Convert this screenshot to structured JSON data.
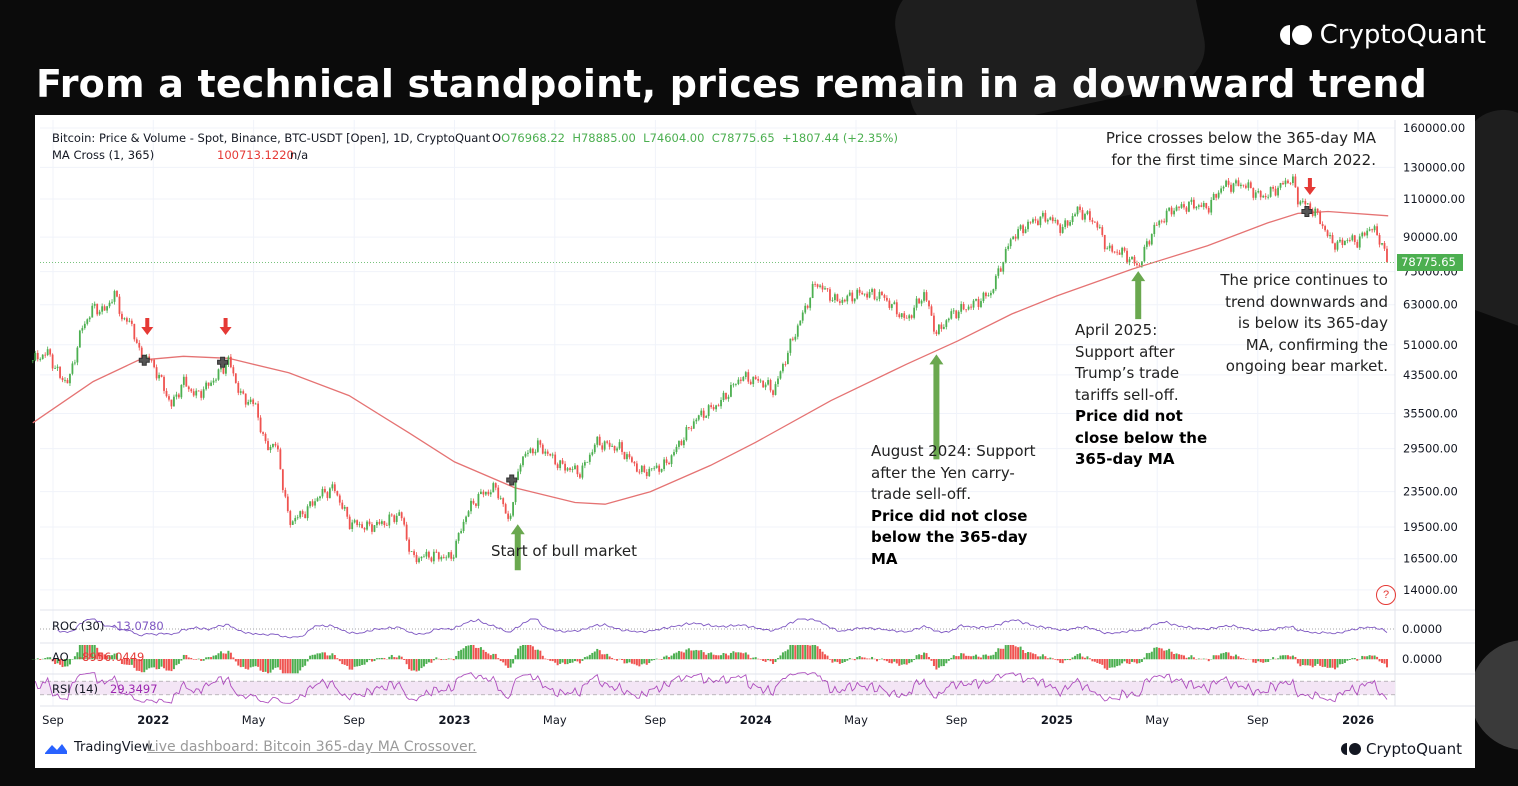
{
  "title": "From a technical standpoint, prices remain in a downward trend",
  "brand": "CryptoQuant",
  "legend": {
    "symbol": "Bitcoin: Price & Volume - Spot, Binance, BTC-USDT [Open], 1D, CryptoQuant",
    "open": "O76968.22",
    "high": "H78885.00",
    "low": "L74604.00",
    "close": "C78775.65",
    "change": "+1807.44 (+2.35%)",
    "ma_label": "MA Cross (1, 365)",
    "ma_value": "100713.1220",
    "ma_na": "n/a"
  },
  "price_tag": "78775.65",
  "help": "?",
  "indicators": {
    "roc": {
      "label": "ROC (30)",
      "value": "-13.0780",
      "zero": "0.0000"
    },
    "ao": {
      "label": "AO",
      "value": "-8956.0449",
      "zero": "0.0000"
    },
    "rsi": {
      "label": "RSI (14)",
      "value": "29.3497"
    }
  },
  "annotations": {
    "top_right": "Price crosses below the 365-day MA for the first time since March 2022.",
    "bear": "The price continues to trend downwards and is below its 365-day MA, confirming the ongoing bear market.",
    "april_2025": "April 2025: Support after Trump’s trade tariffs sell-off.",
    "april_2025_bold": "Price did not close below the 365-day MA",
    "aug_2024": "August 2024: Support after the Yen carry-trade sell-off.",
    "aug_2024_bold": "Price did not close below the 365-day MA",
    "bull": "Start of bull market"
  },
  "footer": {
    "tradingview": "TradingView",
    "link": "Live dashboard: Bitcoin 365-day MA Crossover.",
    "cryptoquant": "CryptoQuant"
  },
  "colors": {
    "up": "#26a69a",
    "up_alt": "#4caf50",
    "down": "#ef5350",
    "ma": "#e57373",
    "roc": "#7e57c2",
    "rsi": "#9c27b0",
    "arrow_green": "#6aa84f",
    "arrow_red": "#e53935"
  },
  "chart_data": {
    "type": "line",
    "title": "Bitcoin: Price & Volume - Spot, Binance, BTC-USDT [Open], 1D",
    "yscale": "log",
    "ylim": [
      14000,
      160000
    ],
    "y_ticks": [
      "160000.00",
      "130000.00",
      "110000.00",
      "90000.00",
      "75000.00",
      "63000.00",
      "51000.00",
      "43500.00",
      "35500.00",
      "29500.00",
      "23500.00",
      "19500.00",
      "16500.00",
      "14000.00"
    ],
    "y_tick_values": [
      160000,
      130000,
      110000,
      90000,
      75000,
      63000,
      51000,
      43500,
      35500,
      29500,
      23500,
      19500,
      16500,
      14000
    ],
    "x_ticks": [
      {
        "label": "Sep",
        "t": 2021.667,
        "bold": false
      },
      {
        "label": "2022",
        "t": 2022.0,
        "bold": true
      },
      {
        "label": "May",
        "t": 2022.333,
        "bold": false
      },
      {
        "label": "Sep",
        "t": 2022.667,
        "bold": false
      },
      {
        "label": "2023",
        "t": 2023.0,
        "bold": true
      },
      {
        "label": "May",
        "t": 2023.333,
        "bold": false
      },
      {
        "label": "Sep",
        "t": 2023.667,
        "bold": false
      },
      {
        "label": "2024",
        "t": 2024.0,
        "bold": true
      },
      {
        "label": "May",
        "t": 2024.333,
        "bold": false
      },
      {
        "label": "Sep",
        "t": 2024.667,
        "bold": false
      },
      {
        "label": "2025",
        "t": 2025.0,
        "bold": true
      },
      {
        "label": "May",
        "t": 2025.333,
        "bold": false
      },
      {
        "label": "Sep",
        "t": 2025.667,
        "bold": false
      },
      {
        "label": "2026",
        "t": 2026.0,
        "bold": true
      }
    ],
    "series": [
      {
        "name": "BTC-USDT price",
        "points": [
          [
            2021.6,
            47000
          ],
          [
            2021.65,
            49000
          ],
          [
            2021.69,
            43000
          ],
          [
            2021.72,
            42000
          ],
          [
            2021.76,
            55000
          ],
          [
            2021.8,
            62000
          ],
          [
            2021.84,
            61000
          ],
          [
            2021.87,
            67000
          ],
          [
            2021.9,
            58000
          ],
          [
            2021.93,
            57000
          ],
          [
            2021.95,
            49000
          ],
          [
            2021.99,
            47000
          ],
          [
            2022.02,
            43000
          ],
          [
            2022.06,
            37000
          ],
          [
            2022.1,
            42000
          ],
          [
            2022.14,
            39000
          ],
          [
            2022.18,
            41000
          ],
          [
            2022.22,
            44000
          ],
          [
            2022.25,
            47000
          ],
          [
            2022.29,
            39000
          ],
          [
            2022.34,
            37000
          ],
          [
            2022.37,
            30000
          ],
          [
            2022.41,
            30000
          ],
          [
            2022.45,
            20000
          ],
          [
            2022.5,
            21000
          ],
          [
            2022.55,
            23000
          ],
          [
            2022.6,
            24000
          ],
          [
            2022.65,
            20000
          ],
          [
            2022.71,
            19500
          ],
          [
            2022.77,
            20000
          ],
          [
            2022.82,
            21000
          ],
          [
            2022.86,
            16500
          ],
          [
            2022.92,
            16800
          ],
          [
            2022.99,
            16600
          ],
          [
            2023.04,
            21000
          ],
          [
            2023.08,
            23000
          ],
          [
            2023.14,
            24000
          ],
          [
            2023.18,
            20000
          ],
          [
            2023.22,
            28000
          ],
          [
            2023.28,
            30000
          ],
          [
            2023.35,
            27000
          ],
          [
            2023.42,
            26000
          ],
          [
            2023.47,
            30500
          ],
          [
            2023.55,
            29500
          ],
          [
            2023.62,
            26000
          ],
          [
            2023.7,
            27000
          ],
          [
            2023.8,
            34500
          ],
          [
            2023.88,
            37500
          ],
          [
            2023.95,
            43000
          ],
          [
            2024.02,
            42000
          ],
          [
            2024.06,
            40000
          ],
          [
            2024.12,
            52000
          ],
          [
            2024.2,
            71000
          ],
          [
            2024.27,
            64000
          ],
          [
            2024.35,
            67000
          ],
          [
            2024.42,
            66000
          ],
          [
            2024.5,
            58000
          ],
          [
            2024.56,
            67000
          ],
          [
            2024.6,
            54000
          ],
          [
            2024.65,
            60000
          ],
          [
            2024.72,
            63000
          ],
          [
            2024.78,
            67000
          ],
          [
            2024.85,
            90000
          ],
          [
            2024.92,
            98000
          ],
          [
            2024.97,
            100000
          ],
          [
            2025.02,
            94000
          ],
          [
            2025.07,
            104000
          ],
          [
            2025.13,
            97000
          ],
          [
            2025.17,
            84000
          ],
          [
            2025.22,
            83000
          ],
          [
            2025.27,
            77000
          ],
          [
            2025.32,
            94000
          ],
          [
            2025.38,
            104000
          ],
          [
            2025.45,
            107000
          ],
          [
            2025.5,
            105000
          ],
          [
            2025.55,
            118000
          ],
          [
            2025.62,
            119000
          ],
          [
            2025.68,
            111000
          ],
          [
            2025.72,
            115000
          ],
          [
            2025.78,
            123000
          ],
          [
            2025.8,
            110000
          ],
          [
            2025.84,
            105000
          ],
          [
            2025.87,
            100000
          ],
          [
            2025.9,
            90000
          ],
          [
            2025.93,
            86000
          ],
          [
            2025.96,
            89000
          ],
          [
            2026.0,
            88000
          ],
          [
            2026.04,
            95000
          ],
          [
            2026.07,
            90000
          ],
          [
            2026.1,
            78776
          ]
        ]
      },
      {
        "name": "365-day MA",
        "points": [
          [
            2021.6,
            33800
          ],
          [
            2021.8,
            42000
          ],
          [
            2021.95,
            47000
          ],
          [
            2022.1,
            48000
          ],
          [
            2022.25,
            47500
          ],
          [
            2022.45,
            44000
          ],
          [
            2022.65,
            39000
          ],
          [
            2022.85,
            32000
          ],
          [
            2023.0,
            27500
          ],
          [
            2023.2,
            24000
          ],
          [
            2023.4,
            22200
          ],
          [
            2023.5,
            22000
          ],
          [
            2023.65,
            23500
          ],
          [
            2023.85,
            27000
          ],
          [
            2024.0,
            30500
          ],
          [
            2024.25,
            38000
          ],
          [
            2024.5,
            46000
          ],
          [
            2024.67,
            52000
          ],
          [
            2024.85,
            60000
          ],
          [
            2025.0,
            66000
          ],
          [
            2025.25,
            76000
          ],
          [
            2025.5,
            86000
          ],
          [
            2025.7,
            97000
          ],
          [
            2025.8,
            102000
          ],
          [
            2025.9,
            103000
          ],
          [
            2026.1,
            100713
          ]
        ]
      }
    ],
    "crosses": [
      [
        2021.97,
        47000
      ],
      [
        2022.23,
        46500
      ],
      [
        2023.19,
        25000
      ],
      [
        2025.83,
        103000
      ]
    ],
    "red_arrows": [
      2021.98,
      2022.24,
      2025.84
    ],
    "green_arrows": [
      [
        2023.21,
        20000
      ],
      [
        2024.6,
        49000
      ],
      [
        2025.27,
        76000
      ]
    ]
  }
}
